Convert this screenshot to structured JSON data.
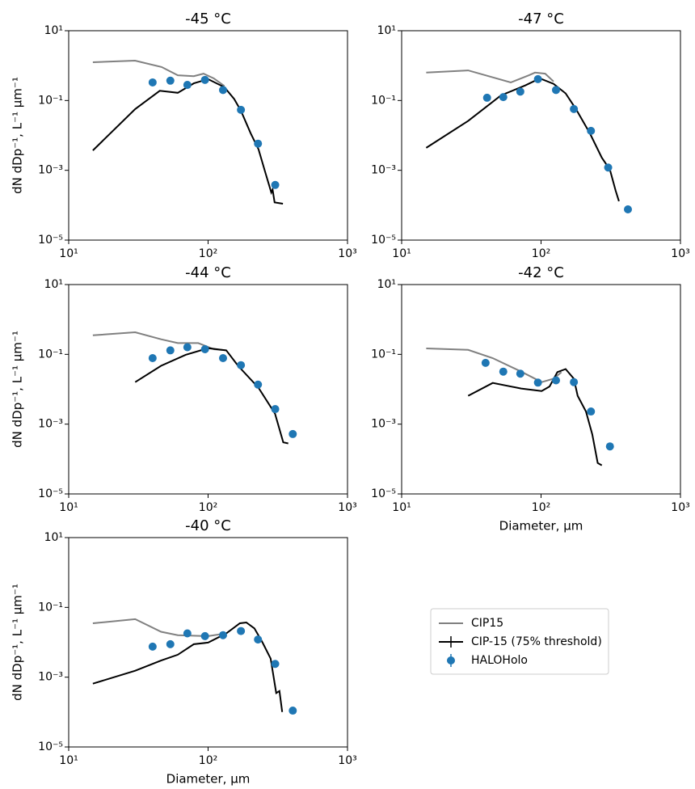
{
  "chart_data": [
    {
      "type": "line",
      "title": "-45 °C",
      "ylabel": "dN dDp⁻¹, L⁻¹ µm⁻¹",
      "xscale": "log",
      "yscale": "log",
      "grid": false,
      "xlim": [
        10,
        1000
      ],
      "xticks": [
        {
          "value": 10,
          "label": "10¹"
        },
        {
          "value": 100,
          "label": "10²"
        },
        {
          "value": 1000,
          "label": "10³"
        }
      ],
      "ylim": [
        1e-05,
        10
      ],
      "yticks": [
        {
          "value": 10,
          "label": "10¹"
        },
        {
          "value": 0.1,
          "label": "10⁻¹"
        },
        {
          "value": 0.001,
          "label": "10⁻³"
        },
        {
          "value": 1e-05,
          "label": "10⁻⁵"
        }
      ],
      "series": [
        {
          "style": "line",
          "color": "#808080",
          "x": [
            14.9,
            29.9,
            46.4,
            60.6,
            79,
            92.8,
            110,
            131
          ],
          "values": [
            1.25,
            1.39,
            0.91,
            0.53,
            0.5,
            0.59,
            0.43,
            0.26
          ]
        },
        {
          "style": "line",
          "color": "#000000",
          "x": [
            14.9,
            30,
            45,
            60.6,
            79,
            100,
            131,
            154,
            172,
            202,
            230,
            256,
            284,
            290,
            300,
            344
          ],
          "values": [
            0.0037,
            0.057,
            0.19,
            0.166,
            0.31,
            0.41,
            0.24,
            0.11,
            0.051,
            0.0115,
            0.004,
            0.00093,
            0.00023,
            0.00028,
            0.00012,
            0.00011
          ]
        },
        {
          "style": "marker",
          "color": "#1f77b4",
          "x": [
            40,
            53.6,
            71,
            95,
            128,
            172,
            228,
            303
          ],
          "values": [
            0.33,
            0.37,
            0.28,
            0.39,
            0.2,
            0.054,
            0.0058,
            0.00038
          ]
        }
      ]
    },
    {
      "type": "line",
      "title": "-47 °C",
      "xscale": "log",
      "yscale": "log",
      "grid": false,
      "xlim": [
        10,
        1000
      ],
      "xticks": [
        {
          "value": 10,
          "label": "10¹"
        },
        {
          "value": 100,
          "label": "10²"
        },
        {
          "value": 1000,
          "label": "10³"
        }
      ],
      "ylim": [
        1e-05,
        10
      ],
      "yticks": [
        {
          "value": 10,
          "label": "10¹"
        },
        {
          "value": 0.1,
          "label": "10⁻¹"
        },
        {
          "value": 0.001,
          "label": "10⁻³"
        },
        {
          "value": 1e-05,
          "label": "10⁻⁵"
        }
      ],
      "series": [
        {
          "style": "line",
          "color": "#808080",
          "x": [
            15,
            30,
            60.6,
            82,
            90.5,
            107,
            123
          ],
          "values": [
            0.63,
            0.73,
            0.33,
            0.53,
            0.63,
            0.59,
            0.35
          ]
        },
        {
          "style": "line",
          "color": "#000000",
          "x": [
            15,
            30,
            51.6,
            77,
            98,
            123,
            150,
            178,
            224,
            273,
            312,
            343,
            362
          ],
          "values": [
            0.0044,
            0.026,
            0.14,
            0.27,
            0.43,
            0.3,
            0.16,
            0.057,
            0.0115,
            0.0023,
            0.00105,
            0.00026,
            0.00013
          ]
        },
        {
          "style": "marker",
          "color": "#1f77b4",
          "x": [
            41,
            53.6,
            71,
            95,
            128,
            172,
            228,
            303,
            420
          ],
          "values": [
            0.12,
            0.125,
            0.18,
            0.41,
            0.2,
            0.057,
            0.0135,
            0.0012,
            7.6e-05
          ]
        }
      ]
    },
    {
      "type": "line",
      "title": "-44 °C",
      "ylabel": "dN dDp⁻¹, L⁻¹ µm⁻¹",
      "xscale": "log",
      "yscale": "log",
      "grid": false,
      "xlim": [
        10,
        1000
      ],
      "xticks": [
        {
          "value": 10,
          "label": "10¹"
        },
        {
          "value": 100,
          "label": "10²"
        },
        {
          "value": 1000,
          "label": "10³"
        }
      ],
      "ylim": [
        1e-05,
        10
      ],
      "yticks": [
        {
          "value": 10,
          "label": "10¹"
        },
        {
          "value": 0.1,
          "label": "10⁻¹"
        },
        {
          "value": 0.001,
          "label": "10⁻³"
        },
        {
          "value": 1e-05,
          "label": "10⁻⁵"
        }
      ],
      "series": [
        {
          "style": "line",
          "color": "#808080",
          "x": [
            14.9,
            30,
            46,
            60.6,
            85,
            110,
            135
          ],
          "values": [
            0.35,
            0.43,
            0.27,
            0.21,
            0.21,
            0.14,
            0.13
          ]
        },
        {
          "style": "line",
          "color": "#000000",
          "x": [
            30,
            46,
            69,
            100,
            135,
            164,
            230,
            302,
            346,
            376
          ],
          "values": [
            0.016,
            0.047,
            0.097,
            0.15,
            0.13,
            0.047,
            0.011,
            0.002,
            0.0003,
            0.00028
          ]
        },
        {
          "style": "marker",
          "color": "#1f77b4",
          "x": [
            40,
            53.6,
            71,
            95,
            128,
            172,
            228,
            303,
            405
          ],
          "values": [
            0.078,
            0.13,
            0.16,
            0.14,
            0.078,
            0.049,
            0.0136,
            0.0027,
            0.00052
          ]
        }
      ]
    },
    {
      "type": "line",
      "title": "-42 °C",
      "xlabel": "Diameter, µm",
      "xscale": "log",
      "yscale": "log",
      "grid": false,
      "xlim": [
        10,
        1000
      ],
      "xticks": [
        {
          "value": 10,
          "label": "10¹"
        },
        {
          "value": 100,
          "label": "10²"
        },
        {
          "value": 1000,
          "label": "10³"
        }
      ],
      "ylim": [
        1e-05,
        10
      ],
      "yticks": [
        {
          "value": 10,
          "label": "10¹"
        },
        {
          "value": 0.1,
          "label": "10⁻¹"
        },
        {
          "value": 0.001,
          "label": "10⁻³"
        },
        {
          "value": 1e-05,
          "label": "10⁻⁵"
        }
      ],
      "series": [
        {
          "style": "line",
          "color": "#808080",
          "x": [
            15,
            30,
            45,
            72,
            101,
            123,
            140
          ],
          "values": [
            0.148,
            0.134,
            0.078,
            0.032,
            0.016,
            0.02,
            0.031
          ]
        },
        {
          "style": "line",
          "color": "#000000",
          "x": [
            30,
            45,
            72,
            101,
            115,
            131,
            150,
            172,
            183,
            210,
            233,
            255,
            273
          ],
          "values": [
            0.0065,
            0.0152,
            0.0105,
            0.0089,
            0.012,
            0.031,
            0.038,
            0.02,
            0.0065,
            0.0023,
            0.00051,
            7.7e-05,
            6.6e-05
          ]
        },
        {
          "style": "marker",
          "color": "#1f77b4",
          "x": [
            40,
            53.6,
            71,
            95,
            128,
            172,
            228,
            312
          ],
          "values": [
            0.057,
            0.032,
            0.028,
            0.0155,
            0.018,
            0.016,
            0.0023,
            0.00023
          ]
        }
      ]
    },
    {
      "type": "line",
      "title": "-40 °C",
      "xlabel": "Diameter, µm",
      "ylabel": "dN dDp⁻¹, L⁻¹ µm⁻¹",
      "xscale": "log",
      "yscale": "log",
      "grid": false,
      "legend": "right",
      "xlim": [
        10,
        1000
      ],
      "xticks": [
        {
          "value": 10,
          "label": "10¹"
        },
        {
          "value": 100,
          "label": "10²"
        },
        {
          "value": 1000,
          "label": "10³"
        }
      ],
      "ylim": [
        1e-05,
        10
      ],
      "yticks": [
        {
          "value": 10,
          "label": "10¹"
        },
        {
          "value": 0.1,
          "label": "10⁻¹"
        },
        {
          "value": 0.001,
          "label": "10⁻³"
        },
        {
          "value": 1e-05,
          "label": "10⁻⁵"
        }
      ],
      "series": [
        {
          "name": "CIP15",
          "style": "line",
          "color": "#808080",
          "x": [
            14.9,
            30,
            46,
            60.6,
            100,
            135
          ],
          "values": [
            0.035,
            0.046,
            0.02,
            0.016,
            0.015,
            0.018
          ]
        },
        {
          "name": "CIP-15 (75% threshold)",
          "style": "line",
          "color": "#000000",
          "x": [
            14.9,
            30,
            46,
            60.6,
            79,
            100,
            135,
            169,
            188,
            215,
            246,
            281,
            308,
            325,
            340
          ],
          "values": [
            0.00065,
            0.00153,
            0.003,
            0.0044,
            0.0088,
            0.0098,
            0.018,
            0.035,
            0.037,
            0.025,
            0.0098,
            0.0034,
            0.00035,
            0.0004,
            0.0001
          ]
        },
        {
          "name": "HALOHolo",
          "style": "marker",
          "color": "#1f77b4",
          "x": [
            40,
            53.6,
            71,
            95,
            128,
            172,
            228,
            303,
            405
          ],
          "values": [
            0.0075,
            0.0088,
            0.018,
            0.015,
            0.016,
            0.021,
            0.012,
            0.0024,
            0.00011
          ]
        }
      ]
    }
  ]
}
